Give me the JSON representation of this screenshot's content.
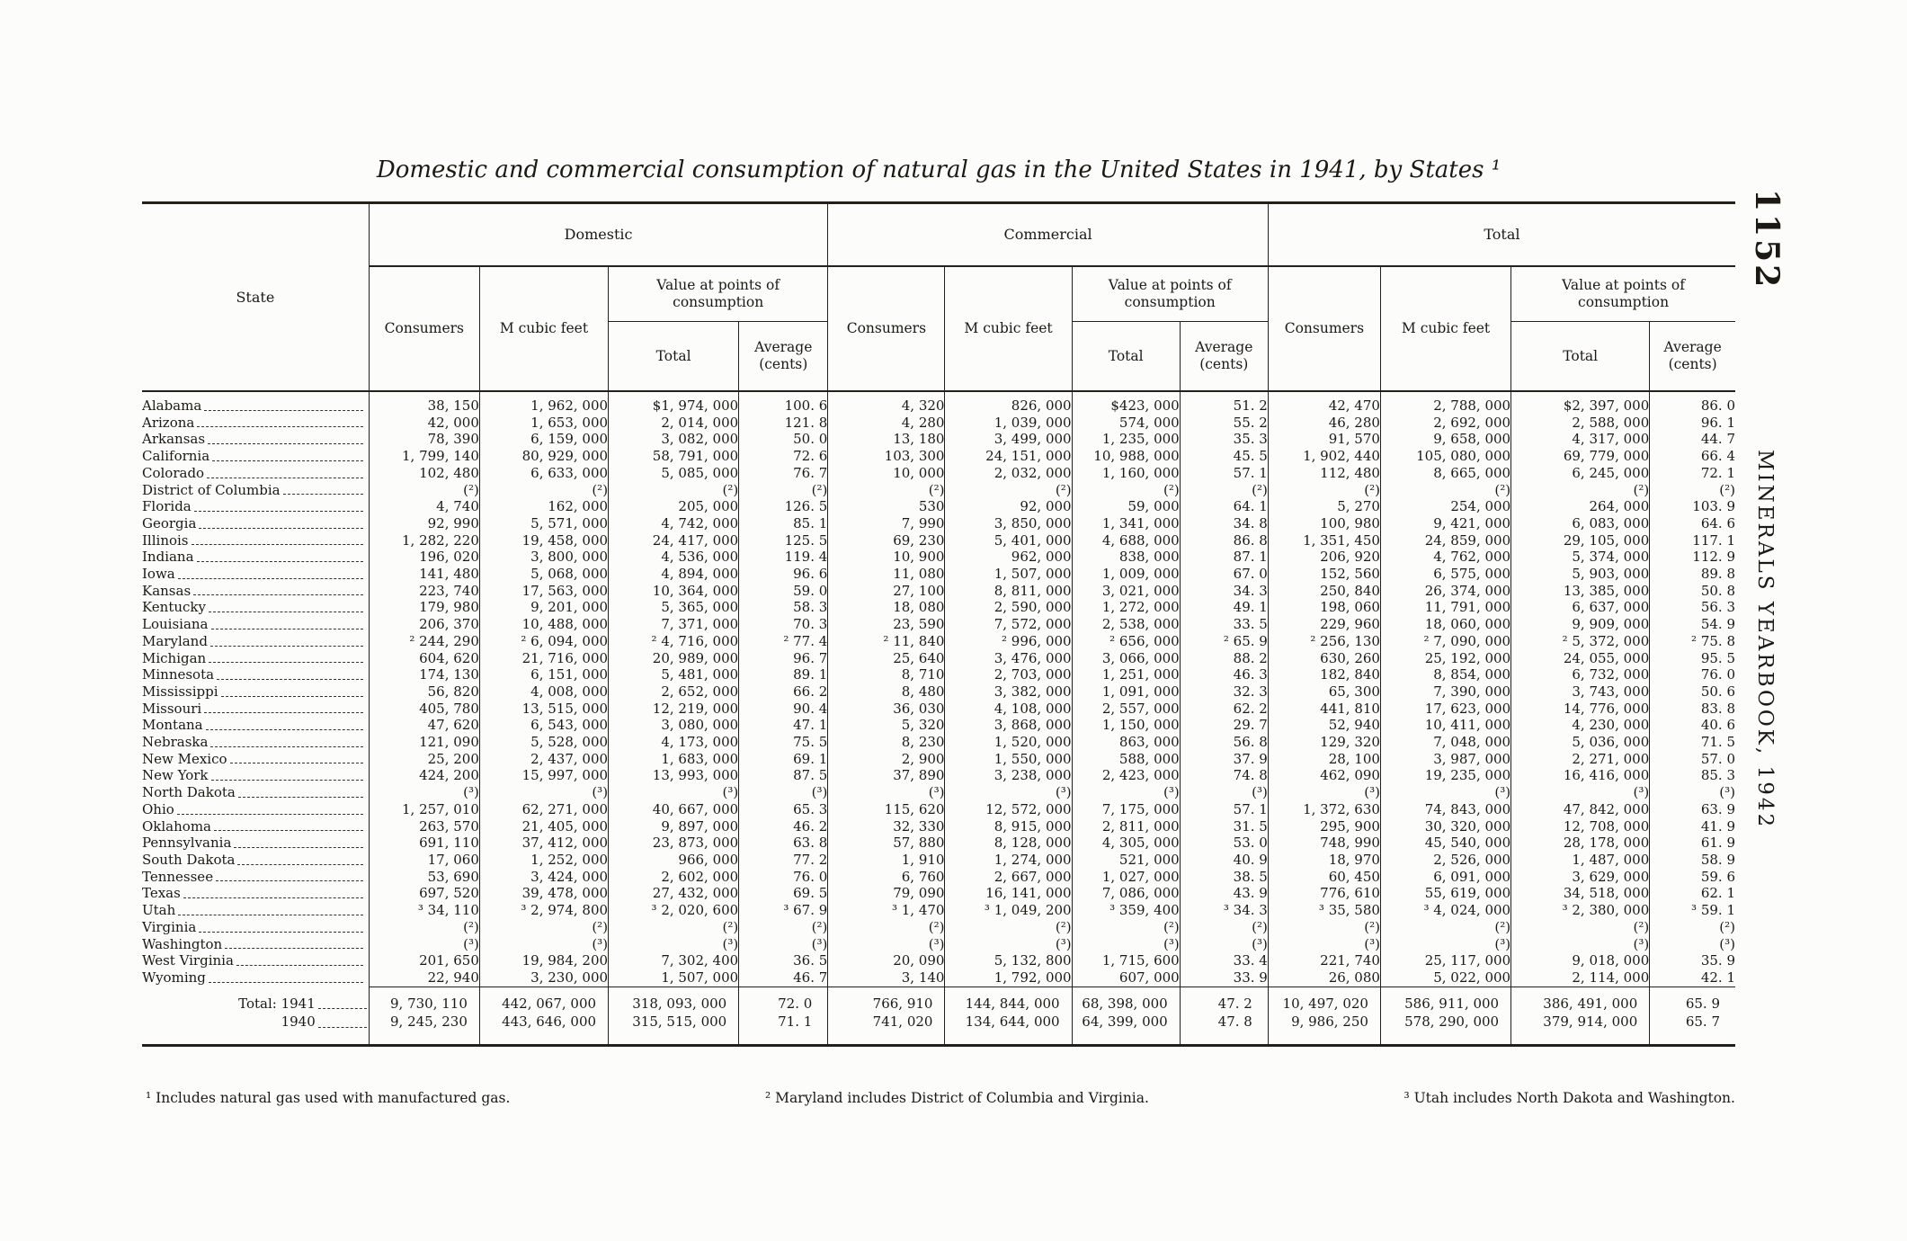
{
  "page": {
    "number": "1152",
    "margin_text": "MINERALS YEARBOOK, 1942"
  },
  "table": {
    "title": "Domestic and commercial consumption of natural gas in the United States in 1941, by States ¹",
    "headers": {
      "state": "State",
      "groups": [
        "Domestic",
        "Commercial",
        "Total"
      ],
      "consumers": "Consumers",
      "mcf": "M cubic feet",
      "value": "Value at points of consumption",
      "total": "Total",
      "average": "Average (cents)"
    },
    "rows": [
      {
        "state": "Alabama",
        "v": [
          "38, 150",
          "1, 962, 000",
          "$1, 974, 000",
          "100. 6",
          "4, 320",
          "826, 000",
          "$423, 000",
          "51. 2",
          "42, 470",
          "2, 788, 000",
          "$2, 397, 000",
          "86. 0"
        ]
      },
      {
        "state": "Arizona",
        "v": [
          "42, 000",
          "1, 653, 000",
          "2, 014, 000",
          "121. 8",
          "4, 280",
          "1, 039, 000",
          "574, 000",
          "55. 2",
          "46, 280",
          "2, 692, 000",
          "2, 588, 000",
          "96. 1"
        ]
      },
      {
        "state": "Arkansas",
        "v": [
          "78, 390",
          "6, 159, 000",
          "3, 082, 000",
          "50. 0",
          "13, 180",
          "3, 499, 000",
          "1, 235, 000",
          "35. 3",
          "91, 570",
          "9, 658, 000",
          "4, 317, 000",
          "44. 7"
        ]
      },
      {
        "state": "California",
        "v": [
          "1, 799, 140",
          "80, 929, 000",
          "58, 791, 000",
          "72. 6",
          "103, 300",
          "24, 151, 000",
          "10, 988, 000",
          "45. 5",
          "1, 902, 440",
          "105, 080, 000",
          "69, 779, 000",
          "66. 4"
        ]
      },
      {
        "state": "Colorado",
        "v": [
          "102, 480",
          "6, 633, 000",
          "5, 085, 000",
          "76. 7",
          "10, 000",
          "2, 032, 000",
          "1, 160, 000",
          "57. 1",
          "112, 480",
          "8, 665, 000",
          "6, 245, 000",
          "72. 1"
        ]
      },
      {
        "state": "District of Columbia",
        "v": [
          "(²)",
          "(²)",
          "(²)",
          "(²)",
          "(²)",
          "(²)",
          "(²)",
          "(²)",
          "(²)",
          "(²)",
          "(²)",
          "(²)"
        ]
      },
      {
        "state": "Florida",
        "v": [
          "4, 740",
          "162, 000",
          "205, 000",
          "126. 5",
          "530",
          "92, 000",
          "59, 000",
          "64. 1",
          "5, 270",
          "254, 000",
          "264, 000",
          "103. 9"
        ]
      },
      {
        "state": "Georgia",
        "v": [
          "92, 990",
          "5, 571, 000",
          "4, 742, 000",
          "85. 1",
          "7, 990",
          "3, 850, 000",
          "1, 341, 000",
          "34. 8",
          "100, 980",
          "9, 421, 000",
          "6, 083, 000",
          "64. 6"
        ]
      },
      {
        "state": "Illinois",
        "v": [
          "1, 282, 220",
          "19, 458, 000",
          "24, 417, 000",
          "125. 5",
          "69, 230",
          "5, 401, 000",
          "4, 688, 000",
          "86. 8",
          "1, 351, 450",
          "24, 859, 000",
          "29, 105, 000",
          "117. 1"
        ]
      },
      {
        "state": "Indiana",
        "v": [
          "196, 020",
          "3, 800, 000",
          "4, 536, 000",
          "119. 4",
          "10, 900",
          "962, 000",
          "838, 000",
          "87. 1",
          "206, 920",
          "4, 762, 000",
          "5, 374, 000",
          "112. 9"
        ]
      },
      {
        "state": "Iowa",
        "v": [
          "141, 480",
          "5, 068, 000",
          "4, 894, 000",
          "96. 6",
          "11, 080",
          "1, 507, 000",
          "1, 009, 000",
          "67. 0",
          "152, 560",
          "6, 575, 000",
          "5, 903, 000",
          "89. 8"
        ]
      },
      {
        "state": "Kansas",
        "v": [
          "223, 740",
          "17, 563, 000",
          "10, 364, 000",
          "59. 0",
          "27, 100",
          "8, 811, 000",
          "3, 021, 000",
          "34. 3",
          "250, 840",
          "26, 374, 000",
          "13, 385, 000",
          "50. 8"
        ]
      },
      {
        "state": "Kentucky",
        "v": [
          "179, 980",
          "9, 201, 000",
          "5, 365, 000",
          "58. 3",
          "18, 080",
          "2, 590, 000",
          "1, 272, 000",
          "49. 1",
          "198, 060",
          "11, 791, 000",
          "6, 637, 000",
          "56. 3"
        ]
      },
      {
        "state": "Louisiana",
        "v": [
          "206, 370",
          "10, 488, 000",
          "7, 371, 000",
          "70. 3",
          "23, 590",
          "7, 572, 000",
          "2, 538, 000",
          "33. 5",
          "229, 960",
          "18, 060, 000",
          "9, 909, 000",
          "54. 9"
        ]
      },
      {
        "state": "Maryland",
        "v": [
          "² 244, 290",
          "² 6, 094, 000",
          "² 4, 716, 000",
          "² 77. 4",
          "² 11, 840",
          "² 996, 000",
          "² 656, 000",
          "² 65. 9",
          "² 256, 130",
          "² 7, 090, 000",
          "² 5, 372, 000",
          "² 75. 8"
        ]
      },
      {
        "state": "Michigan",
        "v": [
          "604, 620",
          "21, 716, 000",
          "20, 989, 000",
          "96. 7",
          "25, 640",
          "3, 476, 000",
          "3, 066, 000",
          "88. 2",
          "630, 260",
          "25, 192, 000",
          "24, 055, 000",
          "95. 5"
        ]
      },
      {
        "state": "Minnesota",
        "v": [
          "174, 130",
          "6, 151, 000",
          "5, 481, 000",
          "89. 1",
          "8, 710",
          "2, 703, 000",
          "1, 251, 000",
          "46. 3",
          "182, 840",
          "8, 854, 000",
          "6, 732, 000",
          "76. 0"
        ]
      },
      {
        "state": "Mississippi",
        "v": [
          "56, 820",
          "4, 008, 000",
          "2, 652, 000",
          "66. 2",
          "8, 480",
          "3, 382, 000",
          "1, 091, 000",
          "32. 3",
          "65, 300",
          "7, 390, 000",
          "3, 743, 000",
          "50. 6"
        ]
      },
      {
        "state": "Missouri",
        "v": [
          "405, 780",
          "13, 515, 000",
          "12, 219, 000",
          "90. 4",
          "36, 030",
          "4, 108, 000",
          "2, 557, 000",
          "62. 2",
          "441, 810",
          "17, 623, 000",
          "14, 776, 000",
          "83. 8"
        ]
      },
      {
        "state": "Montana",
        "v": [
          "47, 620",
          "6, 543, 000",
          "3, 080, 000",
          "47. 1",
          "5, 320",
          "3, 868, 000",
          "1, 150, 000",
          "29. 7",
          "52, 940",
          "10, 411, 000",
          "4, 230, 000",
          "40. 6"
        ]
      },
      {
        "state": "Nebraska",
        "v": [
          "121, 090",
          "5, 528, 000",
          "4, 173, 000",
          "75. 5",
          "8, 230",
          "1, 520, 000",
          "863, 000",
          "56. 8",
          "129, 320",
          "7, 048, 000",
          "5, 036, 000",
          "71. 5"
        ]
      },
      {
        "state": "New Mexico",
        "v": [
          "25, 200",
          "2, 437, 000",
          "1, 683, 000",
          "69. 1",
          "2, 900",
          "1, 550, 000",
          "588, 000",
          "37. 9",
          "28, 100",
          "3, 987, 000",
          "2, 271, 000",
          "57. 0"
        ]
      },
      {
        "state": "New York",
        "v": [
          "424, 200",
          "15, 997, 000",
          "13, 993, 000",
          "87. 5",
          "37, 890",
          "3, 238, 000",
          "2, 423, 000",
          "74. 8",
          "462, 090",
          "19, 235, 000",
          "16, 416, 000",
          "85. 3"
        ]
      },
      {
        "state": "North Dakota",
        "v": [
          "(³)",
          "(³)",
          "(³)",
          "(³)",
          "(³)",
          "(³)",
          "(³)",
          "(³)",
          "(³)",
          "(³)",
          "(³)",
          "(³)"
        ]
      },
      {
        "state": "Ohio",
        "v": [
          "1, 257, 010",
          "62, 271, 000",
          "40, 667, 000",
          "65. 3",
          "115, 620",
          "12, 572, 000",
          "7, 175, 000",
          "57. 1",
          "1, 372, 630",
          "74, 843, 000",
          "47, 842, 000",
          "63. 9"
        ]
      },
      {
        "state": "Oklahoma",
        "v": [
          "263, 570",
          "21, 405, 000",
          "9, 897, 000",
          "46. 2",
          "32, 330",
          "8, 915, 000",
          "2, 811, 000",
          "31. 5",
          "295, 900",
          "30, 320, 000",
          "12, 708, 000",
          "41. 9"
        ]
      },
      {
        "state": "Pennsylvania",
        "v": [
          "691, 110",
          "37, 412, 000",
          "23, 873, 000",
          "63. 8",
          "57, 880",
          "8, 128, 000",
          "4, 305, 000",
          "53. 0",
          "748, 990",
          "45, 540, 000",
          "28, 178, 000",
          "61. 9"
        ]
      },
      {
        "state": "South Dakota",
        "v": [
          "17, 060",
          "1, 252, 000",
          "966, 000",
          "77. 2",
          "1, 910",
          "1, 274, 000",
          "521, 000",
          "40. 9",
          "18, 970",
          "2, 526, 000",
          "1, 487, 000",
          "58. 9"
        ]
      },
      {
        "state": "Tennessee",
        "v": [
          "53, 690",
          "3, 424, 000",
          "2, 602, 000",
          "76. 0",
          "6, 760",
          "2, 667, 000",
          "1, 027, 000",
          "38. 5",
          "60, 450",
          "6, 091, 000",
          "3, 629, 000",
          "59. 6"
        ]
      },
      {
        "state": "Texas",
        "v": [
          "697, 520",
          "39, 478, 000",
          "27, 432, 000",
          "69. 5",
          "79, 090",
          "16, 141, 000",
          "7, 086, 000",
          "43. 9",
          "776, 610",
          "55, 619, 000",
          "34, 518, 000",
          "62. 1"
        ]
      },
      {
        "state": "Utah",
        "v": [
          "³ 34, 110",
          "³ 2, 974, 800",
          "³ 2, 020, 600",
          "³ 67. 9",
          "³ 1, 470",
          "³ 1, 049, 200",
          "³ 359, 400",
          "³ 34. 3",
          "³ 35, 580",
          "³ 4, 024, 000",
          "³ 2, 380, 000",
          "³ 59. 1"
        ]
      },
      {
        "state": "Virginia",
        "v": [
          "(²)",
          "(²)",
          "(²)",
          "(²)",
          "(²)",
          "(²)",
          "(²)",
          "(²)",
          "(²)",
          "(²)",
          "(²)",
          "(²)"
        ]
      },
      {
        "state": "Washington",
        "v": [
          "(³)",
          "(³)",
          "(³)",
          "(³)",
          "(³)",
          "(³)",
          "(³)",
          "(³)",
          "(³)",
          "(³)",
          "(³)",
          "(³)"
        ]
      },
      {
        "state": "West Virginia",
        "v": [
          "201, 650",
          "19, 984, 200",
          "7, 302, 400",
          "36. 5",
          "20, 090",
          "5, 132, 800",
          "1, 715, 600",
          "33. 4",
          "221, 740",
          "25, 117, 000",
          "9, 018, 000",
          "35. 9"
        ]
      },
      {
        "state": "Wyoming",
        "v": [
          "22, 940",
          "3, 230, 000",
          "1, 507, 000",
          "46. 7",
          "3, 140",
          "1, 792, 000",
          "607, 000",
          "33. 9",
          "26, 080",
          "5, 022, 000",
          "2, 114, 000",
          "42. 1"
        ]
      }
    ],
    "total_rows": [
      {
        "label": "Total: 1941",
        "v": [
          "9, 730, 110",
          "442, 067, 000",
          "318, 093, 000",
          "72. 0",
          "766, 910",
          "144, 844, 000",
          "68, 398, 000",
          "47. 2",
          "10, 497, 020",
          "586, 911, 000",
          "386, 491, 000",
          "65. 9"
        ]
      },
      {
        "label": "1940",
        "v": [
          "9, 245, 230",
          "443, 646, 000",
          "315, 515, 000",
          "71. 1",
          "741, 020",
          "134, 644, 000",
          "64, 399, 000",
          "47. 8",
          "9, 986, 250",
          "578, 290, 000",
          "379, 914, 000",
          "65. 7"
        ]
      }
    ],
    "footnotes": [
      "¹ Includes natural gas used with manufactured gas.",
      "² Maryland includes District of Columbia and Virginia.",
      "³ Utah includes North Dakota and Washington."
    ]
  }
}
